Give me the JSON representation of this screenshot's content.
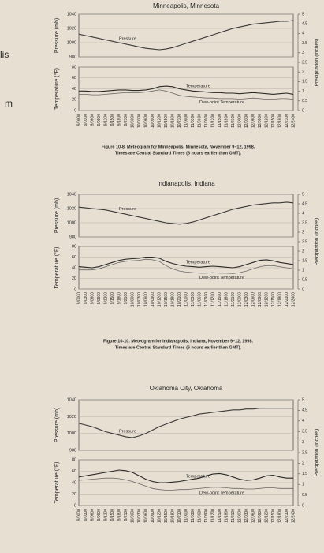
{
  "page_fragments": [
    "lis",
    "m"
  ],
  "chart_data": [
    {
      "type": "line",
      "title": "Minneapolis, Minnesota",
      "caption": [
        "Figure 10-8. Meteogram for Minneapolis, Minnesota, November 9–12, 1998.",
        "Times are Central Standard Times (6 hours earlier than GMT)."
      ],
      "x": [
        "9/0000",
        "9/0300",
        "9/0600",
        "9/0900",
        "9/1200",
        "9/1500",
        "9/1800",
        "9/2100",
        "10/0000",
        "10/0300",
        "10/0600",
        "10/0900",
        "10/1200",
        "10/1500",
        "10/1800",
        "10/2100",
        "11/0000",
        "11/0300",
        "11/0600",
        "11/0900",
        "11/1200",
        "11/1500",
        "11/1800",
        "11/2100",
        "12/0000",
        "12/0300",
        "12/0600",
        "12/0900",
        "12/1200",
        "12/1500",
        "12/1800",
        "12/2100",
        "12/2400"
      ],
      "panels": [
        {
          "ylabel": "Pressure (mb)",
          "ylim": [
            980,
            1040
          ],
          "yticks": [
            980,
            1000,
            1020,
            1040
          ],
          "series": [
            {
              "name": "Pressure",
              "color": "#3a3a3a",
              "values": [
                1012,
                1010,
                1008,
                1006,
                1004,
                1002,
                1000,
                998,
                996,
                994,
                992,
                991,
                990,
                991,
                993,
                996,
                999,
                1002,
                1005,
                1008,
                1011,
                1014,
                1017,
                1020,
                1022,
                1024,
                1026,
                1027,
                1028,
                1029,
                1030,
                1030,
                1031
              ]
            }
          ]
        },
        {
          "ylabel": "Temperature (°F)",
          "ylim": [
            0,
            80
          ],
          "yticks": [
            0,
            20,
            40,
            60,
            80
          ],
          "series": [
            {
              "name": "Temperature",
              "color": "#2a2a2a",
              "values": [
                36,
                36,
                35,
                35,
                36,
                37,
                38,
                38,
                37,
                37,
                38,
                40,
                44,
                45,
                44,
                40,
                38,
                36,
                35,
                34,
                33,
                33,
                32,
                32,
                31,
                32,
                33,
                32,
                31,
                30,
                31,
                32,
                30
              ]
            },
            {
              "name": "Dew-point Temperature",
              "color": "#6a6a6a",
              "values": [
                30,
                30,
                29,
                29,
                30,
                31,
                32,
                33,
                33,
                33,
                34,
                36,
                38,
                36,
                32,
                28,
                26,
                25,
                24,
                23,
                23,
                22,
                22,
                22,
                21,
                22,
                23,
                22,
                21,
                21,
                22,
                22,
                21
              ]
            }
          ]
        }
      ],
      "y2label": "Precipitation (inches)",
      "y2lim": [
        0,
        5
      ],
      "y2ticks": [
        0,
        0.5,
        1,
        1.5,
        2,
        2.5,
        3,
        3.5,
        4,
        4.5,
        5
      ]
    },
    {
      "type": "line",
      "title": "Indianapolis, Indiana",
      "caption": [
        "Figure 10-10. Meteogram for Indianapolis, Indiana, November 9–12, 1998.",
        "Times are Central Standard Times (6 hours earlier than GMT)."
      ],
      "x": [
        "9/0000",
        "9/0300",
        "9/0600",
        "9/0900",
        "9/1200",
        "9/1500",
        "9/1800",
        "9/2100",
        "10/0000",
        "10/0300",
        "10/0600",
        "10/0900",
        "10/1200",
        "10/1500",
        "10/1800",
        "10/2100",
        "11/0000",
        "11/0300",
        "11/0600",
        "11/0900",
        "11/1200",
        "11/1500",
        "11/1800",
        "11/2100",
        "12/0000",
        "12/0300",
        "12/0600",
        "12/0900",
        "12/1200",
        "12/1500",
        "12/1800",
        "12/2100",
        "12/2400"
      ],
      "panels": [
        {
          "ylabel": "Pressure (mb)",
          "ylim": [
            980,
            1040
          ],
          "yticks": [
            980,
            1000,
            1020,
            1040
          ],
          "series": [
            {
              "name": "Pressure",
              "color": "#3a3a3a",
              "values": [
                1022,
                1021,
                1020,
                1019,
                1018,
                1016,
                1014,
                1012,
                1010,
                1008,
                1006,
                1004,
                1002,
                1000,
                999,
                998,
                999,
                1001,
                1004,
                1007,
                1010,
                1013,
                1016,
                1019,
                1021,
                1023,
                1025,
                1026,
                1027,
                1028,
                1028,
                1029,
                1028
              ]
            }
          ]
        },
        {
          "ylabel": "Temperature (°F)",
          "ylim": [
            0,
            80
          ],
          "yticks": [
            0,
            20,
            40,
            60,
            80
          ],
          "series": [
            {
              "name": "Temperature",
              "color": "#2a2a2a",
              "values": [
                42,
                41,
                40,
                42,
                46,
                50,
                54,
                56,
                57,
                58,
                60,
                60,
                58,
                52,
                48,
                45,
                43,
                42,
                41,
                42,
                43,
                42,
                41,
                40,
                42,
                46,
                50,
                54,
                55,
                53,
                50,
                48,
                46
              ]
            },
            {
              "name": "Dew-point Temperature",
              "color": "#6a6a6a",
              "values": [
                36,
                36,
                36,
                38,
                42,
                46,
                50,
                52,
                53,
                54,
                56,
                55,
                52,
                44,
                38,
                34,
                32,
                31,
                30,
                30,
                31,
                30,
                30,
                29,
                31,
                34,
                38,
                42,
                44,
                44,
                42,
                40,
                38
              ]
            }
          ]
        }
      ],
      "y2label": "Precipitation (inches)",
      "y2lim": [
        0,
        5
      ],
      "y2ticks": [
        0,
        0.5,
        1,
        1.5,
        2,
        2.5,
        3,
        3.5,
        4,
        4.5,
        5
      ]
    },
    {
      "type": "line",
      "title": "Oklahoma City, Oklahoma",
      "x": [
        "9/0000",
        "9/0300",
        "9/0600",
        "9/0900",
        "9/1200",
        "9/1500",
        "9/1800",
        "9/2100",
        "10/0000",
        "10/0300",
        "10/0600",
        "10/0900",
        "10/1200",
        "10/1500",
        "10/1800",
        "10/2100",
        "11/0000",
        "11/0300",
        "11/0600",
        "11/0900",
        "11/1200",
        "11/1500",
        "11/1800",
        "11/2100",
        "12/0000",
        "12/0300",
        "12/0600",
        "12/0900",
        "12/1200",
        "12/1500",
        "12/1800",
        "12/2100",
        "12/2400"
      ],
      "panels": [
        {
          "ylabel": "Pressure (mb)",
          "ylim": [
            980,
            1040
          ],
          "yticks": [
            980,
            1000,
            1020,
            1040
          ],
          "series": [
            {
              "name": "Pressure",
              "color": "#3a3a3a",
              "values": [
                1012,
                1010,
                1008,
                1005,
                1002,
                1000,
                998,
                996,
                995,
                997,
                1000,
                1004,
                1008,
                1011,
                1014,
                1017,
                1019,
                1021,
                1023,
                1024,
                1025,
                1026,
                1027,
                1028,
                1028,
                1029,
                1029,
                1030,
                1030,
                1030,
                1030,
                1030,
                1030
              ]
            }
          ]
        },
        {
          "ylabel": "Temperature (°F)",
          "ylim": [
            0,
            80
          ],
          "yticks": [
            0,
            20,
            40,
            60,
            80
          ],
          "series": [
            {
              "name": "Temperature",
              "color": "#2a2a2a",
              "values": [
                50,
                52,
                54,
                56,
                58,
                60,
                62,
                61,
                58,
                52,
                46,
                42,
                40,
                40,
                41,
                42,
                44,
                46,
                48,
                52,
                55,
                56,
                54,
                50,
                46,
                44,
                45,
                48,
                52,
                53,
                50,
                48,
                48
              ]
            },
            {
              "name": "Dew-point Temperature",
              "color": "#6a6a6a",
              "values": [
                44,
                45,
                46,
                47,
                48,
                48,
                47,
                45,
                42,
                38,
                34,
                30,
                28,
                27,
                27,
                28,
                28,
                29,
                30,
                31,
                32,
                32,
                31,
                30,
                30,
                29,
                29,
                30,
                31,
                31,
                30,
                30,
                30
              ]
            }
          ]
        }
      ],
      "y2label": "Precipitation (inches)",
      "y2lim": [
        0,
        5
      ],
      "y2ticks": [
        0,
        0.5,
        1,
        1.5,
        2,
        2.5,
        3,
        3.5,
        4,
        4.5,
        5
      ]
    }
  ]
}
